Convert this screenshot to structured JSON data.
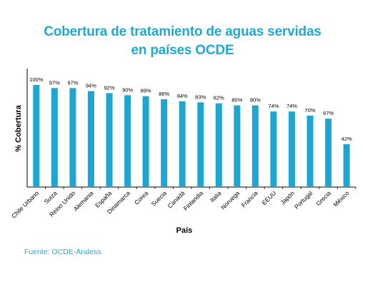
{
  "chart_data": {
    "type": "bar",
    "title_line1": "Cobertura de tratamiento de aguas servidas",
    "title_line2": "en países OCDE",
    "xlabel": "País",
    "ylabel": "% Cobertura",
    "categories": [
      "Chile Urbano",
      "Suiza",
      "Reino Unido",
      "Alemania",
      "España",
      "Dinamarca",
      "Corea",
      "Suecia",
      "Canadá",
      "Finlandia",
      "Italia",
      "Noruega",
      "Francia",
      "EEUU",
      "Japón",
      "Portugal",
      "Grecia",
      "México"
    ],
    "values": [
      100,
      97,
      97,
      94,
      92,
      90,
      89,
      86,
      84,
      83,
      82,
      80,
      80,
      74,
      74,
      70,
      67,
      42
    ],
    "value_labels": [
      "100%",
      "97%",
      "97%",
      "94%",
      "92%",
      "90%",
      "89%",
      "86%",
      "84%",
      "83%",
      "82%",
      "80%",
      "80%",
      "74%",
      "74%",
      "70%",
      "67%",
      "42%"
    ],
    "ylim": [
      0,
      100
    ],
    "grid": false,
    "legend": "none",
    "bar_color": "#1EA6D3",
    "title_color": "#23A9D1"
  },
  "source": "Fuente: OCDE-Andess"
}
